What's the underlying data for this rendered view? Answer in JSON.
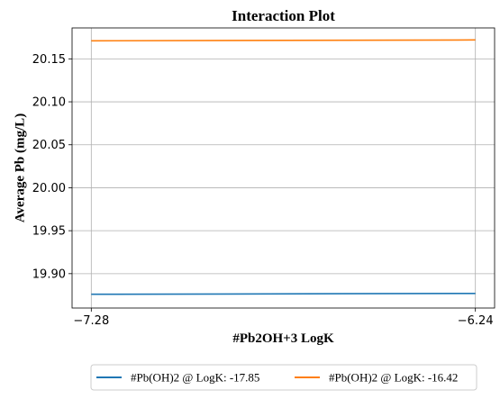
{
  "chart_data": {
    "type": "line",
    "title": "Interaction Plot",
    "xlabel": "#Pb2OH+3 LogK",
    "ylabel": "Average Pb (mg/L)",
    "x": [
      -7.28,
      -6.24
    ],
    "x_tick_labels": [
      "−7.28",
      "−6.24"
    ],
    "xlim": [
      -7.332,
      -6.188
    ],
    "ylim": [
      19.86,
      20.186
    ],
    "y_ticks": [
      19.9,
      19.95,
      20.0,
      20.05,
      20.1,
      20.15
    ],
    "y_tick_labels": [
      "19.90",
      "19.95",
      "20.00",
      "20.05",
      "20.10",
      "20.15"
    ],
    "grid": true,
    "legend_placement": "bottom-center",
    "series": [
      {
        "name": "#Pb(OH)2 @ LogK: -17.85",
        "values": [
          19.876,
          19.877
        ],
        "color": "#1f77b4"
      },
      {
        "name": "#Pb(OH)2 @ LogK: -16.42",
        "values": [
          20.171,
          20.172
        ],
        "color": "#ff7f0e"
      }
    ]
  }
}
